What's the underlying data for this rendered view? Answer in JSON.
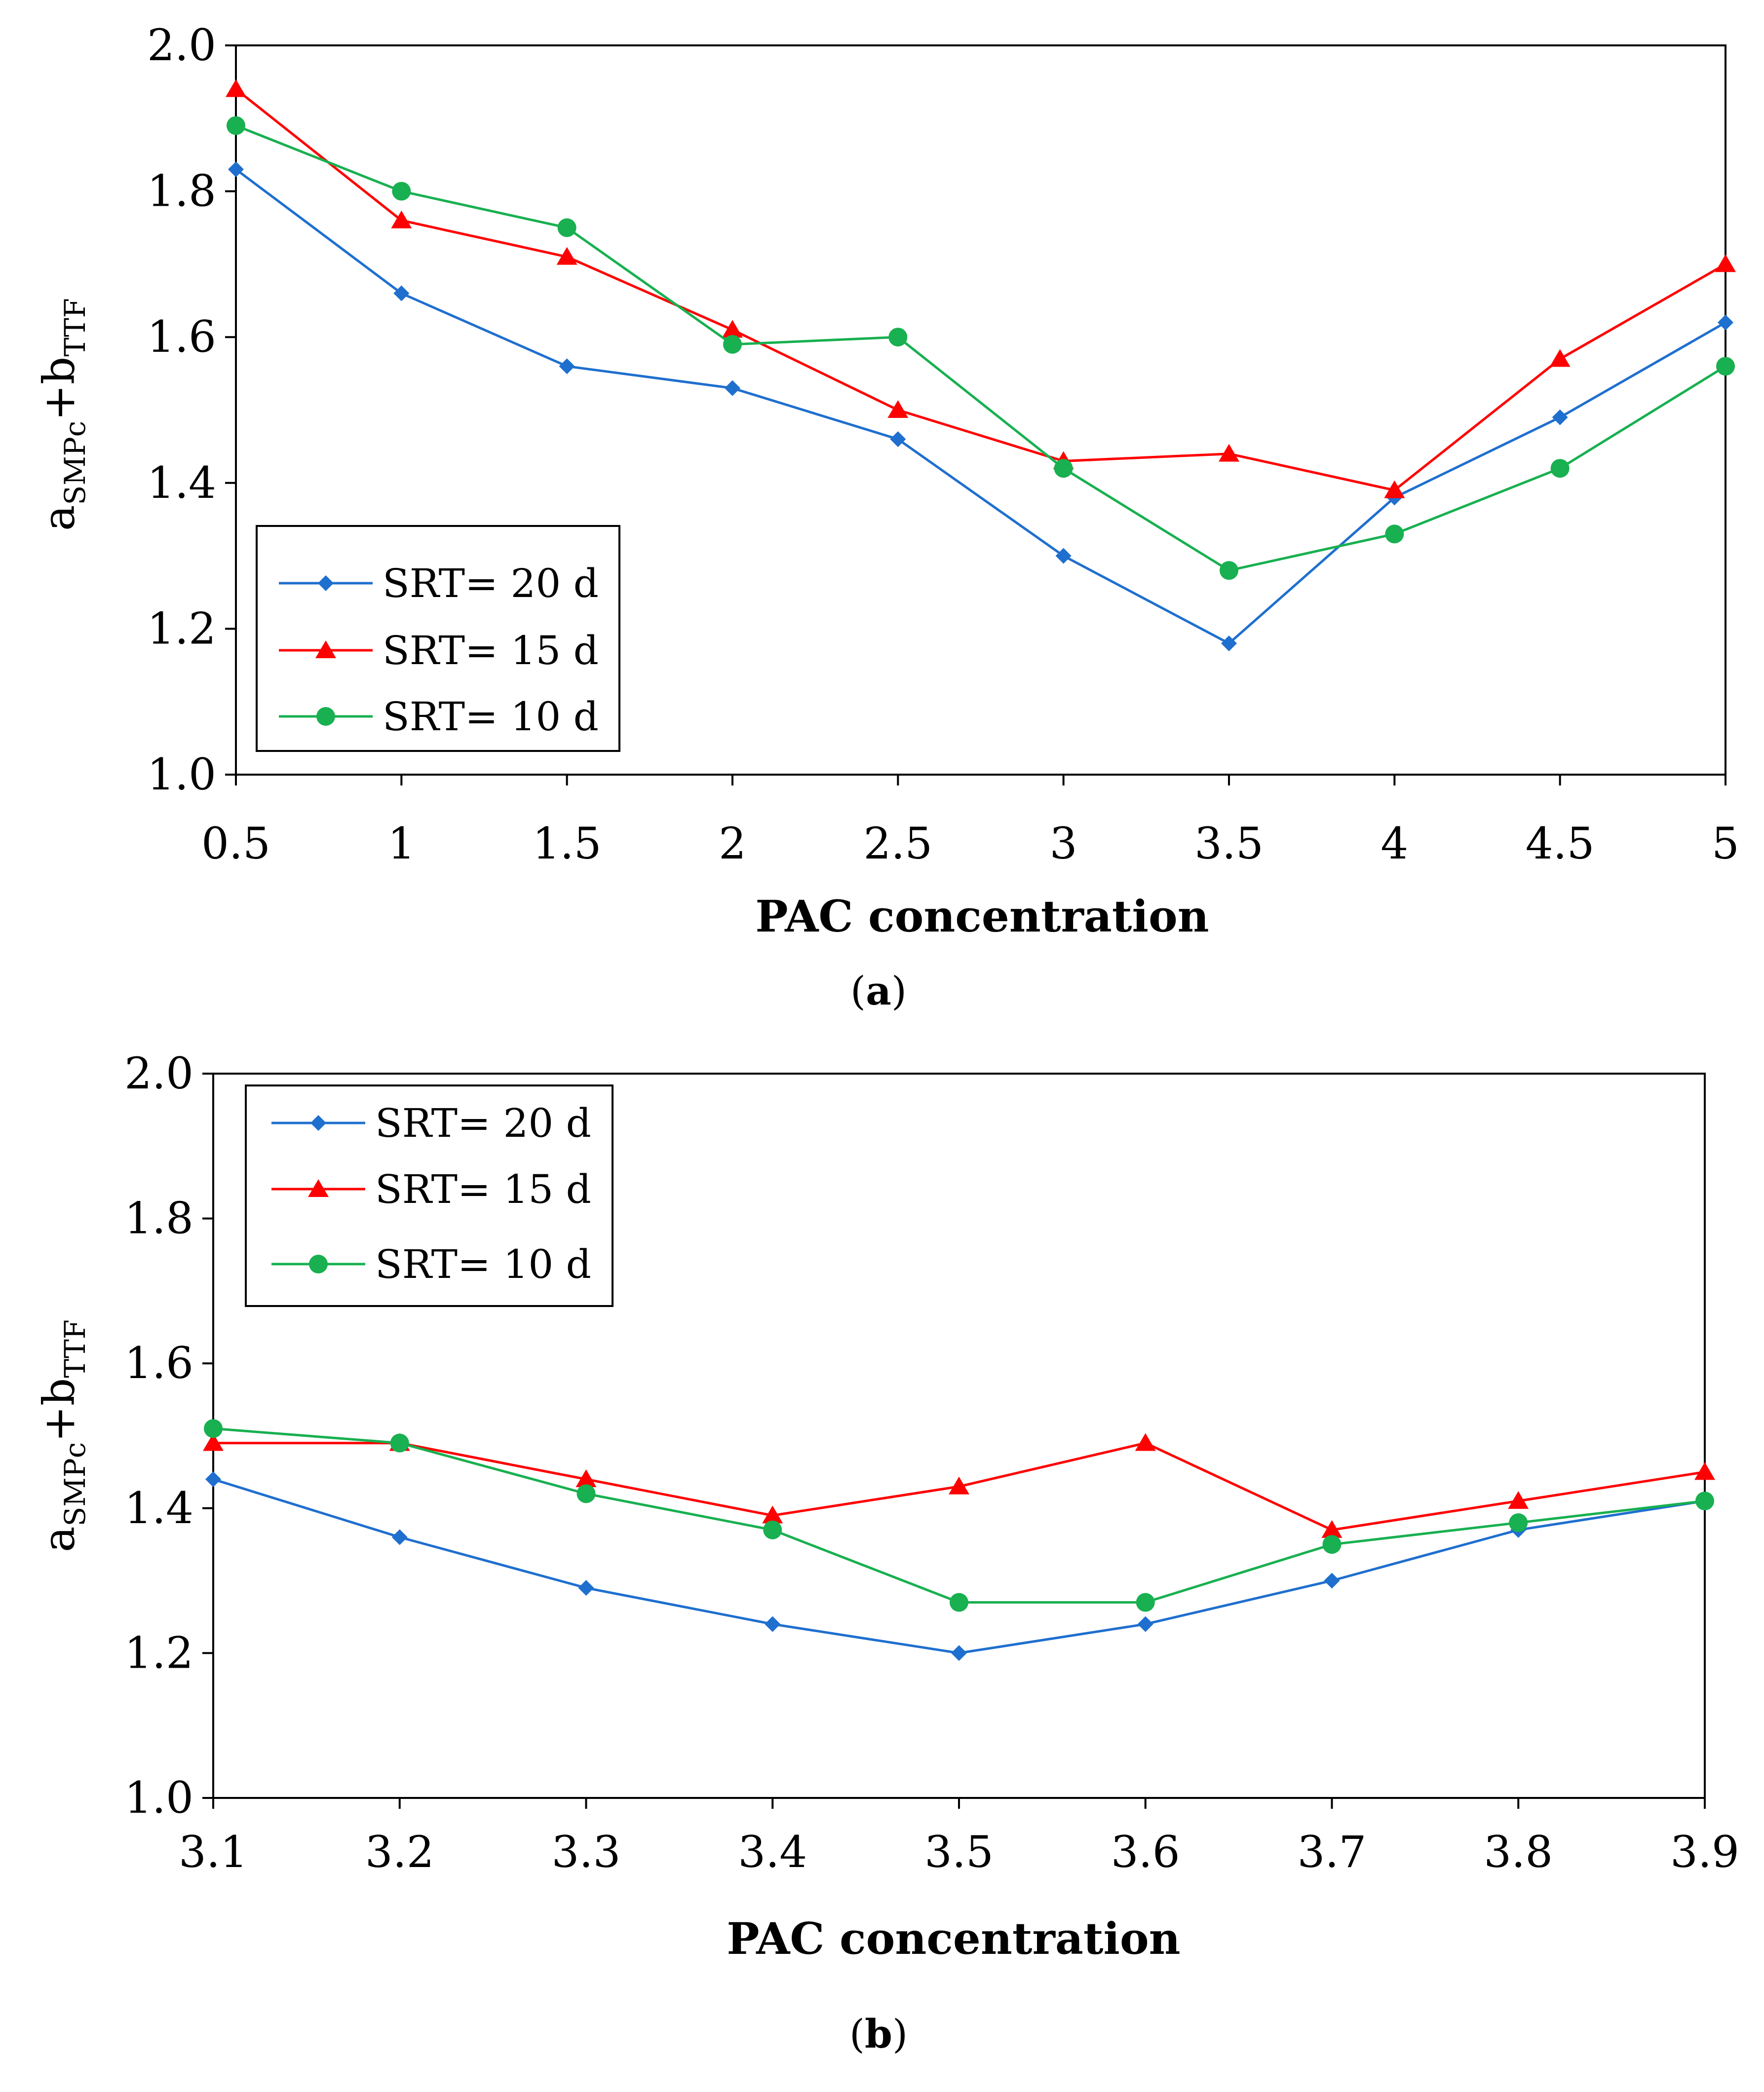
{
  "colors": {
    "srt20": "#1f6fcf",
    "srt15": "#ff0000",
    "srt10": "#18b050"
  },
  "chart_data": [
    {
      "type": "line",
      "caption_letter": "a",
      "caption_open": "(",
      "caption_close": ")",
      "title": "",
      "xlabel": "PAC concentration",
      "ylabel_main": "a",
      "ylabel_sub1": "SMPc",
      "ylabel_plus": "+b",
      "ylabel_sub2": "TTF",
      "x": [
        0.5,
        1,
        1.5,
        2,
        2.5,
        3,
        3.5,
        4,
        4.5,
        5
      ],
      "x_tick_labels": [
        "0.5",
        "1",
        "1.5",
        "2",
        "2.5",
        "3",
        "3.5",
        "4",
        "4.5",
        "5"
      ],
      "ylim": [
        1.0,
        2.0
      ],
      "y_ticks": [
        1.0,
        1.2,
        1.4,
        1.6,
        1.8,
        2.0
      ],
      "y_tick_labels": [
        "1.0",
        "1.2",
        "1.4",
        "1.6",
        "1.8",
        "2.0"
      ],
      "legend_position": "bottom-left",
      "grid": false,
      "series": [
        {
          "name": "SRT= 20 d",
          "color_key": "srt20",
          "marker": "diamond",
          "values": [
            1.83,
            1.66,
            1.56,
            1.53,
            1.46,
            1.3,
            1.18,
            1.38,
            1.49,
            1.62
          ]
        },
        {
          "name": "SRT= 15 d",
          "color_key": "srt15",
          "marker": "triangle",
          "values": [
            1.94,
            1.76,
            1.71,
            1.61,
            1.5,
            1.43,
            1.44,
            1.39,
            1.57,
            1.7
          ]
        },
        {
          "name": "SRT= 10 d",
          "color_key": "srt10",
          "marker": "circle",
          "values": [
            1.89,
            1.8,
            1.75,
            1.59,
            1.6,
            1.42,
            1.28,
            1.33,
            1.42,
            1.56
          ]
        }
      ]
    },
    {
      "type": "line",
      "caption_letter": "b",
      "caption_open": "(",
      "caption_close": ")",
      "title": "",
      "xlabel": "PAC concentration",
      "ylabel_main": "a",
      "ylabel_sub1": "SMPc",
      "ylabel_plus": "+b",
      "ylabel_sub2": "TTF",
      "x": [
        3.1,
        3.2,
        3.3,
        3.4,
        3.5,
        3.6,
        3.7,
        3.8,
        3.9
      ],
      "x_tick_labels": [
        "3.1",
        "3.2",
        "3.3",
        "3.4",
        "3.5",
        "3.6",
        "3.7",
        "3.8",
        "3.9"
      ],
      "ylim": [
        1.0,
        2.0
      ],
      "y_ticks": [
        1.0,
        1.2,
        1.4,
        1.6,
        1.8,
        2.0
      ],
      "y_tick_labels": [
        "1.0",
        "1.2",
        "1.4",
        "1.6",
        "1.8",
        "2.0"
      ],
      "legend_position": "top-left",
      "grid": false,
      "series": [
        {
          "name": "SRT= 20 d",
          "color_key": "srt20",
          "marker": "diamond",
          "values": [
            1.44,
            1.36,
            1.29,
            1.24,
            1.2,
            1.24,
            1.3,
            1.37,
            1.41
          ]
        },
        {
          "name": "SRT= 15 d",
          "color_key": "srt15",
          "marker": "triangle",
          "values": [
            1.49,
            1.49,
            1.44,
            1.39,
            1.43,
            1.49,
            1.37,
            1.41,
            1.45
          ]
        },
        {
          "name": "SRT= 10 d",
          "color_key": "srt10",
          "marker": "circle",
          "values": [
            1.51,
            1.49,
            1.42,
            1.37,
            1.27,
            1.27,
            1.35,
            1.38,
            1.41
          ]
        }
      ]
    }
  ]
}
